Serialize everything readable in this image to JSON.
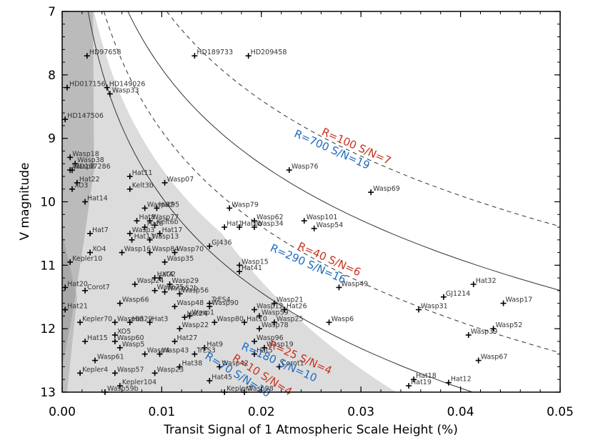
{
  "chart_data": {
    "type": "scatter",
    "title": "",
    "xlabel": "Transit Signal of 1 Atmospheric Scale Height (%)",
    "ylabel": "V magnitude",
    "xlim": [
      0.0,
      0.05
    ],
    "ylim": [
      7,
      13
    ],
    "y_inverted": true,
    "xticks": [
      0.0,
      0.01,
      0.02,
      0.03,
      0.04,
      0.05
    ],
    "xtick_labels": [
      "0.00",
      "0.01",
      "0.02",
      "0.03",
      "0.04",
      "0.05"
    ],
    "yticks": [
      7,
      8,
      9,
      10,
      11,
      12,
      13
    ],
    "ytick_labels": [
      "7",
      "8",
      "9",
      "10",
      "11",
      "12",
      "13"
    ],
    "colors": {
      "red": "#c8321e",
      "blue": "#1e6bc0",
      "shade_dark": "#a0a0a0",
      "shade_light": "#dcdcdc"
    },
    "curves": [
      {
        "label_red": "R=100 S/N=7",
        "label_blue": "R=700 S/N=19",
        "style": "dashed",
        "x_at_v7": 0.0105
      },
      {
        "label_red": "R=40 S/N=6",
        "label_blue": "R=290 S/N=16",
        "style": "solid",
        "x_at_v7": 0.0066
      },
      {
        "label_red": "R=25 S/N=4",
        "label_blue": "R=180 S/N=10",
        "style": "dashed",
        "x_at_v7": 0.0042
      },
      {
        "label_red": "R=10 S/N=4",
        "label_blue": "R=70 S/N=10",
        "style": "solid",
        "x_at_v7": 0.0026
      }
    ],
    "points": [
      {
        "name": "HD97658",
        "x": 0.0025,
        "y": 7.7
      },
      {
        "name": "HD189733",
        "x": 0.0133,
        "y": 7.7
      },
      {
        "name": "HD209458",
        "x": 0.0187,
        "y": 7.7
      },
      {
        "name": "HD017156",
        "x": 0.0005,
        "y": 8.2
      },
      {
        "name": "HD149026",
        "x": 0.0045,
        "y": 8.2
      },
      {
        "name": "Wasp33",
        "x": 0.0048,
        "y": 8.3
      },
      {
        "name": "HD147506",
        "x": 0.0003,
        "y": 8.7
      },
      {
        "name": "Wasp18",
        "x": 0.0008,
        "y": 9.3
      },
      {
        "name": "Wasp38",
        "x": 0.0013,
        "y": 9.4
      },
      {
        "name": "HD197286",
        "x": 0.001,
        "y": 9.5
      },
      {
        "name": "Wasp8",
        "x": 0.0008,
        "y": 9.5
      },
      {
        "name": "Hat11",
        "x": 0.0068,
        "y": 9.6
      },
      {
        "name": "Wasp07",
        "x": 0.0103,
        "y": 9.7
      },
      {
        "name": "Hat22",
        "x": 0.0015,
        "y": 9.7
      },
      {
        "name": "XO3",
        "x": 0.001,
        "y": 9.8
      },
      {
        "name": "Kelt3b",
        "x": 0.0068,
        "y": 9.8
      },
      {
        "name": "Hat14",
        "x": 0.0023,
        "y": 10.0
      },
      {
        "name": "Wasp82",
        "x": 0.0083,
        "y": 10.1
      },
      {
        "name": "Hat95",
        "x": 0.0095,
        "y": 10.1
      },
      {
        "name": "Wasp79",
        "x": 0.0168,
        "y": 10.1
      },
      {
        "name": "Wasp62",
        "x": 0.0193,
        "y": 10.3
      },
      {
        "name": "Wasp101",
        "x": 0.0243,
        "y": 10.3
      },
      {
        "name": "Hat8",
        "x": 0.0075,
        "y": 10.3
      },
      {
        "name": "Wasp77",
        "x": 0.0088,
        "y": 10.3
      },
      {
        "name": "Kelt6b",
        "x": 0.0093,
        "y": 10.37
      },
      {
        "name": "Hat6",
        "x": 0.0083,
        "y": 10.4
      },
      {
        "name": "Hat1",
        "x": 0.0163,
        "y": 10.4
      },
      {
        "name": "Hat1b",
        "x": 0.0178,
        "y": 10.4
      },
      {
        "name": "Wasp34",
        "x": 0.0193,
        "y": 10.4
      },
      {
        "name": "Wasp54",
        "x": 0.0253,
        "y": 10.42
      },
      {
        "name": "Wasp69",
        "x": 0.031,
        "y": 9.85
      },
      {
        "name": "Wasp76",
        "x": 0.0228,
        "y": 9.5
      },
      {
        "name": "Hat7",
        "x": 0.0028,
        "y": 10.5
      },
      {
        "name": "Wasp3",
        "x": 0.0068,
        "y": 10.5
      },
      {
        "name": "Hat17",
        "x": 0.0098,
        "y": 10.5
      },
      {
        "name": "Hat13",
        "x": 0.007,
        "y": 10.6
      },
      {
        "name": "Wasp13",
        "x": 0.0088,
        "y": 10.6
      },
      {
        "name": "GJ436",
        "x": 0.0148,
        "y": 10.7
      },
      {
        "name": "XO4",
        "x": 0.0028,
        "y": 10.8
      },
      {
        "name": "Wasp16",
        "x": 0.006,
        "y": 10.8
      },
      {
        "name": "Wasp84",
        "x": 0.0088,
        "y": 10.8
      },
      {
        "name": "Wasp70",
        "x": 0.0113,
        "y": 10.8
      },
      {
        "name": "Kepler10",
        "x": 0.0008,
        "y": 10.95
      },
      {
        "name": "Wasp35",
        "x": 0.0103,
        "y": 10.95
      },
      {
        "name": "Wasp15",
        "x": 0.0178,
        "y": 11.0
      },
      {
        "name": "Hat41",
        "x": 0.0178,
        "y": 11.1
      },
      {
        "name": "Hat32",
        "x": 0.0413,
        "y": 11.3
      },
      {
        "name": "Hat4",
        "x": 0.0093,
        "y": 11.2
      },
      {
        "name": "XO2",
        "x": 0.0098,
        "y": 11.2
      },
      {
        "name": "Hat20",
        "x": 0.0003,
        "y": 11.35
      },
      {
        "name": "Corot7",
        "x": 0.0023,
        "y": 11.4
      },
      {
        "name": "Wasp24",
        "x": 0.0073,
        "y": 11.3
      },
      {
        "name": "Wasp29",
        "x": 0.0108,
        "y": 11.3
      },
      {
        "name": "Wasp49",
        "x": 0.0278,
        "y": 11.35
      },
      {
        "name": "Wasp75",
        "x": 0.0093,
        "y": 11.4
      },
      {
        "name": "Wasp52b",
        "x": 0.0103,
        "y": 11.42
      },
      {
        "name": "Wasp56",
        "x": 0.0118,
        "y": 11.45
      },
      {
        "name": "Wasp66",
        "x": 0.0058,
        "y": 11.6
      },
      {
        "name": "Wasp17",
        "x": 0.0443,
        "y": 11.6
      },
      {
        "name": "GJ1214",
        "x": 0.0383,
        "y": 11.5
      },
      {
        "name": "TrES4",
        "x": 0.0148,
        "y": 11.6
      },
      {
        "name": "Wasp48",
        "x": 0.0113,
        "y": 11.65
      },
      {
        "name": "Wasp90",
        "x": 0.0148,
        "y": 11.65
      },
      {
        "name": "Wasp21",
        "x": 0.0213,
        "y": 11.6
      },
      {
        "name": "Hat21",
        "x": 0.0003,
        "y": 11.7
      },
      {
        "name": "Wasp12",
        "x": 0.0193,
        "y": 11.7
      },
      {
        "name": "Hat26",
        "x": 0.0223,
        "y": 11.7
      },
      {
        "name": "Wasp31",
        "x": 0.0358,
        "y": 11.7
      },
      {
        "name": "Wasp1",
        "x": 0.0128,
        "y": 11.8
      },
      {
        "name": "Hat24",
        "x": 0.0123,
        "y": 11.82
      },
      {
        "name": "Wasp59",
        "x": 0.0198,
        "y": 11.8
      },
      {
        "name": "Wasp80",
        "x": 0.0153,
        "y": 11.9
      },
      {
        "name": "Hat10",
        "x": 0.0183,
        "y": 11.9
      },
      {
        "name": "Wasp25",
        "x": 0.0213,
        "y": 11.9
      },
      {
        "name": "Wasp6",
        "x": 0.0268,
        "y": 11.9
      },
      {
        "name": "Kepler70",
        "x": 0.0018,
        "y": 11.9
      },
      {
        "name": "Wasp65",
        "x": 0.0053,
        "y": 11.9
      },
      {
        "name": "Hat29",
        "x": 0.0068,
        "y": 11.9
      },
      {
        "name": "Hat3",
        "x": 0.0088,
        "y": 11.9
      },
      {
        "name": "Wasp78",
        "x": 0.0198,
        "y": 12.0
      },
      {
        "name": "Wasp22",
        "x": 0.0118,
        "y": 12.0
      },
      {
        "name": "Wasp52",
        "x": 0.0433,
        "y": 12.0
      },
      {
        "name": "Wasp39",
        "x": 0.0408,
        "y": 12.1
      },
      {
        "name": "XO5",
        "x": 0.0053,
        "y": 12.1
      },
      {
        "name": "Hat15",
        "x": 0.0023,
        "y": 12.2
      },
      {
        "name": "Wasp60",
        "x": 0.0053,
        "y": 12.2
      },
      {
        "name": "Hat27",
        "x": 0.0113,
        "y": 12.2
      },
      {
        "name": "Wasp96",
        "x": 0.0193,
        "y": 12.2
      },
      {
        "name": "Wasp5",
        "x": 0.0058,
        "y": 12.3
      },
      {
        "name": "Hat9",
        "x": 0.0143,
        "y": 12.3
      },
      {
        "name": "Wasp19",
        "x": 0.0203,
        "y": 12.3
      },
      {
        "name": "TrES3",
        "x": 0.0133,
        "y": 12.4
      },
      {
        "name": "Wasp4",
        "x": 0.0083,
        "y": 12.4
      },
      {
        "name": "Wasp43",
        "x": 0.0098,
        "y": 12.4
      },
      {
        "name": "Hat5",
        "x": 0.0193,
        "y": 12.4
      },
      {
        "name": "Wasp67",
        "x": 0.0418,
        "y": 12.5
      },
      {
        "name": "Wasp61",
        "x": 0.0033,
        "y": 12.5
      },
      {
        "name": "Corot1",
        "x": 0.0218,
        "y": 12.6
      },
      {
        "name": "Hat38",
        "x": 0.0118,
        "y": 12.6
      },
      {
        "name": "Wasp42",
        "x": 0.0158,
        "y": 12.6
      },
      {
        "name": "Kepler4",
        "x": 0.0018,
        "y": 12.7
      },
      {
        "name": "Wasp57",
        "x": 0.0053,
        "y": 12.7
      },
      {
        "name": "Wasp23",
        "x": 0.0093,
        "y": 12.7
      },
      {
        "name": "Hat18",
        "x": 0.0353,
        "y": 12.8
      },
      {
        "name": "Hat12",
        "x": 0.0388,
        "y": 12.85
      },
      {
        "name": "Hat45",
        "x": 0.0148,
        "y": 12.82
      },
      {
        "name": "Hat19",
        "x": 0.0348,
        "y": 12.9
      },
      {
        "name": "Kepler104",
        "x": 0.0058,
        "y": 12.9
      },
      {
        "name": "Wasp59b",
        "x": 0.0043,
        "y": 13.0
      },
      {
        "name": "Kepler7",
        "x": 0.0163,
        "y": 13.0
      },
      {
        "name": "Wasp98",
        "x": 0.0183,
        "y": 13.0
      }
    ]
  }
}
